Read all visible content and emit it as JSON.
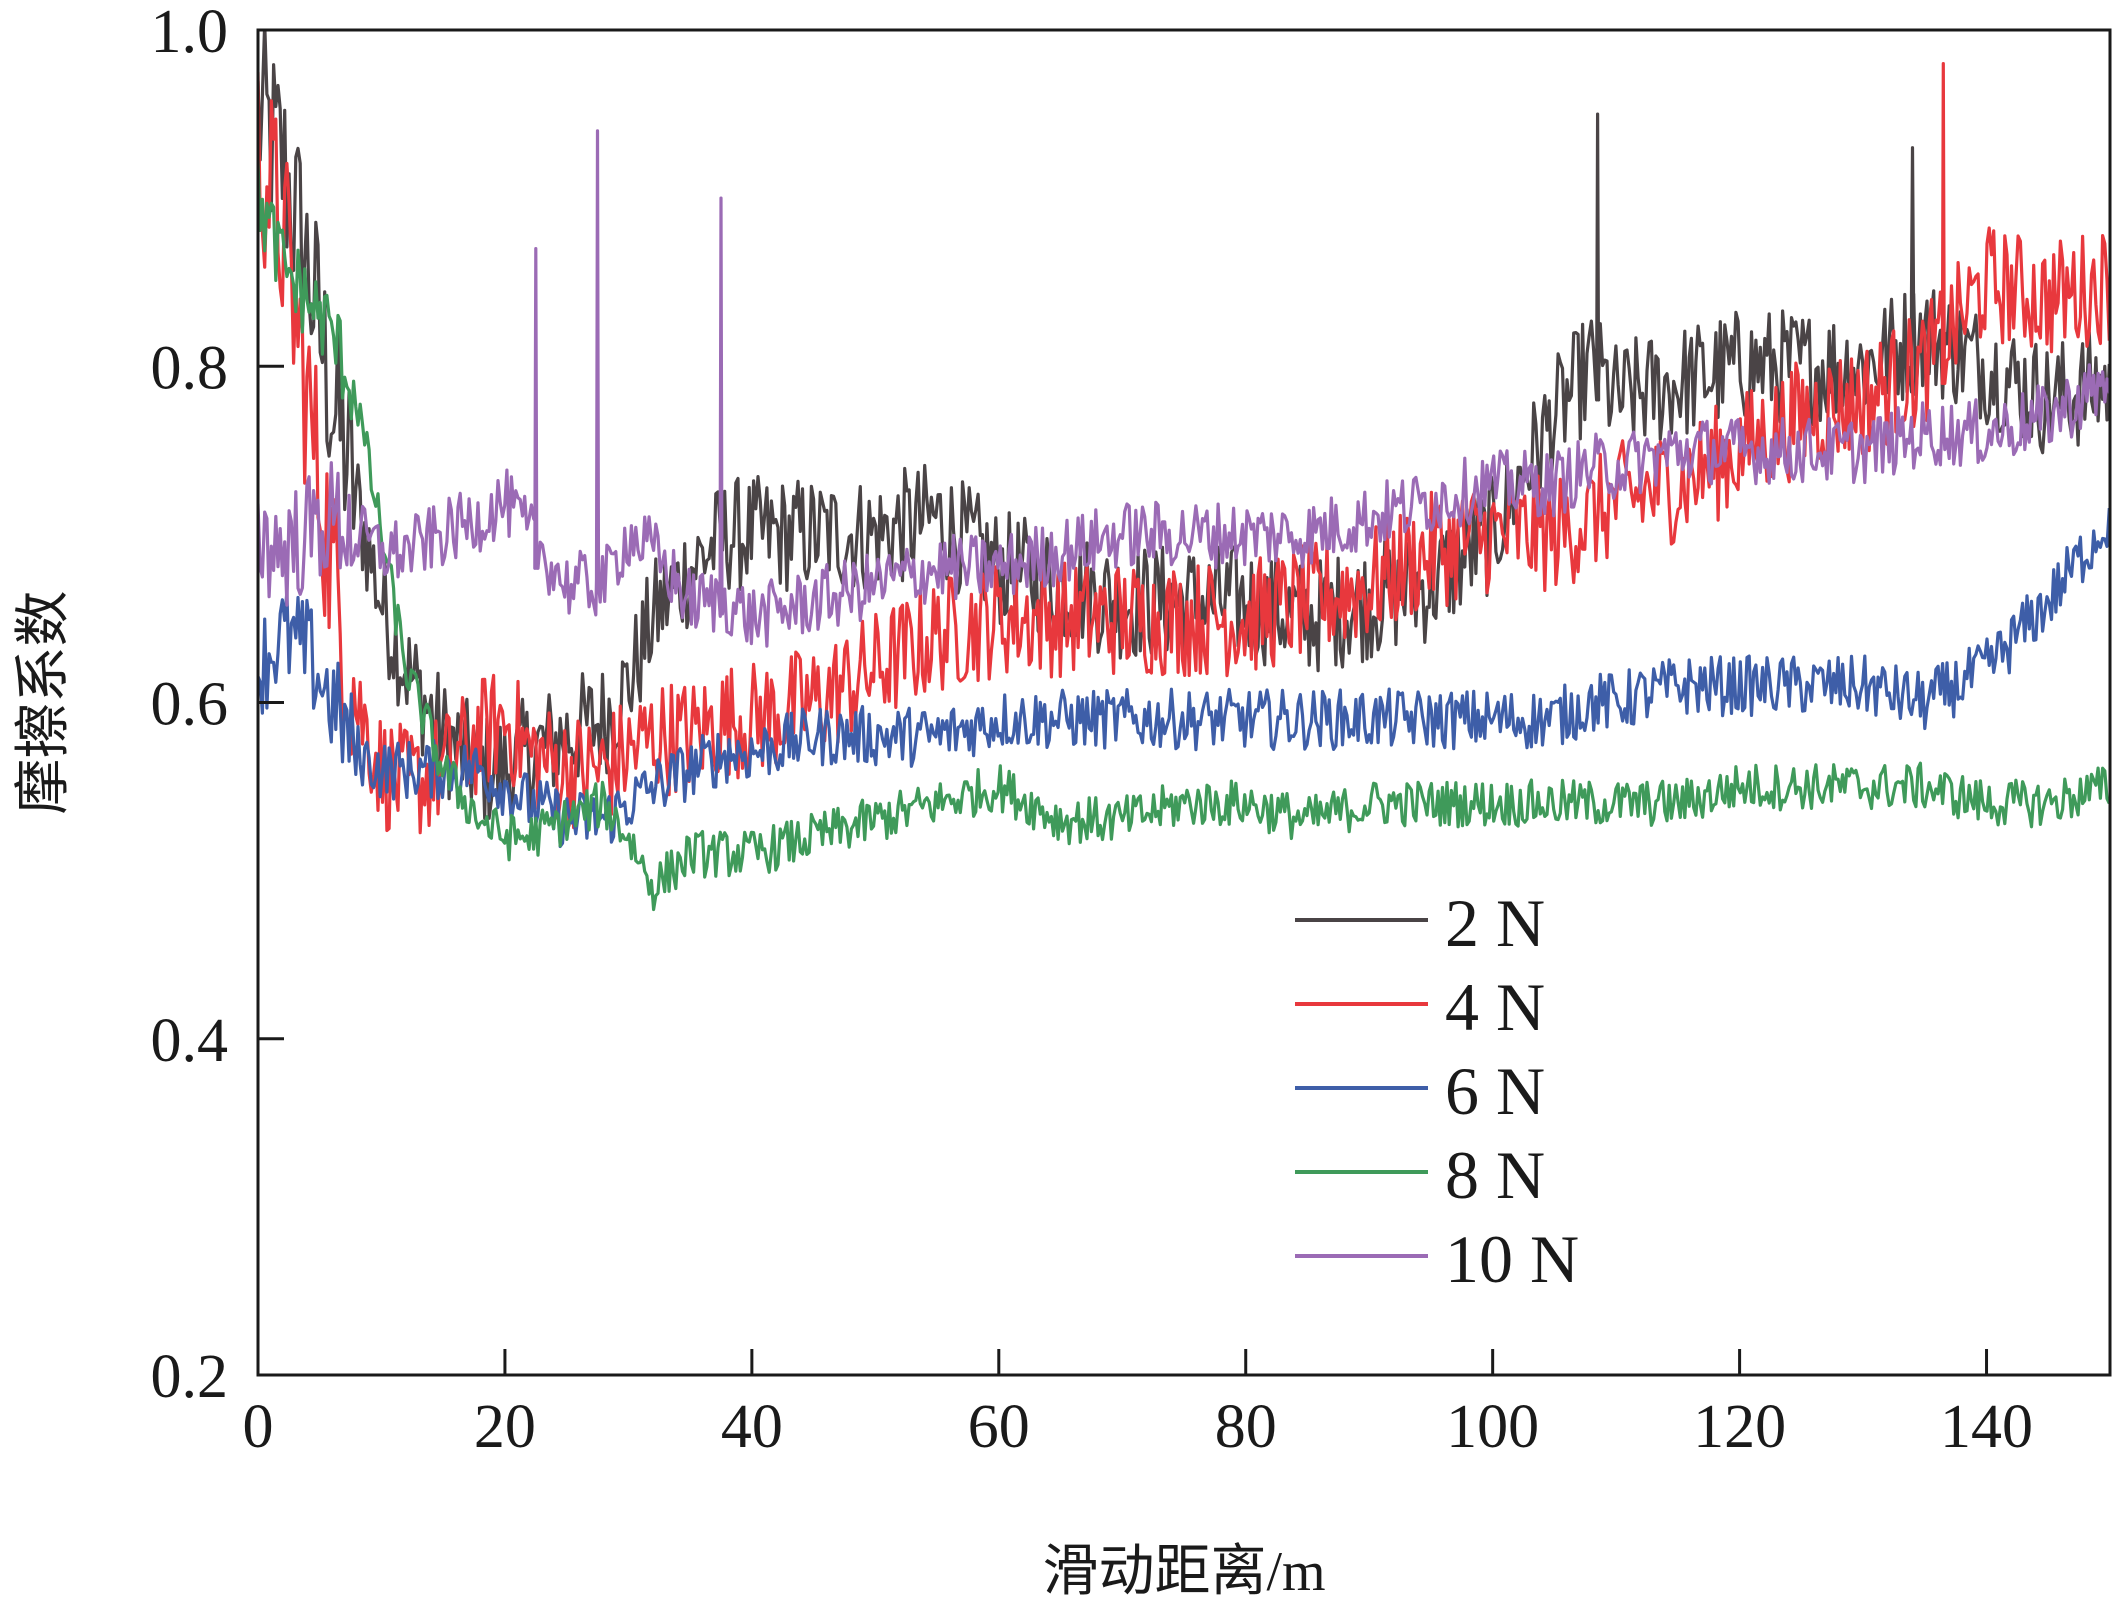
{
  "chart_data": {
    "type": "line",
    "title": "",
    "xlabel": "滑动距离/m",
    "ylabel": "摩擦系数",
    "xlim": [
      0,
      150
    ],
    "ylim": [
      0.2,
      1.0
    ],
    "x_ticks": [
      0,
      20,
      40,
      60,
      80,
      100,
      120,
      140
    ],
    "y_ticks": [
      0.2,
      0.4,
      0.6,
      0.8,
      1.0
    ],
    "x_tick_labels": [
      "0",
      "20",
      "40",
      "60",
      "80",
      "100",
      "120",
      "140"
    ],
    "y_tick_labels": [
      "0.2",
      "0.4",
      "0.6",
      "0.8",
      "1.0"
    ],
    "grid": false,
    "legend_position": "lower-right",
    "x": [
      0,
      2,
      4,
      6,
      8,
      10,
      12,
      15,
      18,
      20,
      22,
      25,
      28,
      30,
      32,
      35,
      38,
      40,
      45,
      50,
      55,
      60,
      65,
      70,
      75,
      80,
      85,
      90,
      95,
      100,
      102,
      105,
      108,
      110,
      115,
      120,
      125,
      130,
      135,
      140,
      145,
      150
    ],
    "series": [
      {
        "name": "2 N",
        "color": "#4a4446",
        "values": [
          0.95,
          0.92,
          0.86,
          0.78,
          0.72,
          0.66,
          0.62,
          0.58,
          0.56,
          0.56,
          0.57,
          0.58,
          0.59,
          0.61,
          0.65,
          0.68,
          0.7,
          0.7,
          0.7,
          0.7,
          0.71,
          0.68,
          0.67,
          0.66,
          0.66,
          0.66,
          0.65,
          0.66,
          0.67,
          0.7,
          0.73,
          0.77,
          0.8,
          0.78,
          0.79,
          0.8,
          0.8,
          0.8,
          0.82,
          0.8,
          0.78,
          0.79
        ]
      },
      {
        "name": "4 N",
        "color": "#e8383d",
        "values": [
          0.93,
          0.88,
          0.78,
          0.68,
          0.6,
          0.56,
          0.55,
          0.56,
          0.58,
          0.59,
          0.57,
          0.56,
          0.56,
          0.57,
          0.58,
          0.58,
          0.59,
          0.59,
          0.6,
          0.62,
          0.64,
          0.65,
          0.65,
          0.65,
          0.65,
          0.65,
          0.66,
          0.67,
          0.69,
          0.7,
          0.7,
          0.7,
          0.71,
          0.72,
          0.73,
          0.75,
          0.77,
          0.78,
          0.8,
          0.85,
          0.84,
          0.85
        ]
      },
      {
        "name": "6 N",
        "color": "#3e5ea8",
        "values": [
          0.62,
          0.64,
          0.63,
          0.6,
          0.57,
          0.56,
          0.56,
          0.56,
          0.56,
          0.55,
          0.54,
          0.53,
          0.53,
          0.54,
          0.55,
          0.56,
          0.57,
          0.57,
          0.58,
          0.58,
          0.58,
          0.59,
          0.59,
          0.59,
          0.59,
          0.59,
          0.59,
          0.59,
          0.59,
          0.59,
          0.59,
          0.59,
          0.6,
          0.6,
          0.61,
          0.61,
          0.61,
          0.61,
          0.6,
          0.62,
          0.66,
          0.71
        ]
      },
      {
        "name": "8 N",
        "color": "#3f9a5a",
        "values": [
          0.9,
          0.86,
          0.84,
          0.82,
          0.78,
          0.7,
          0.62,
          0.56,
          0.53,
          0.52,
          0.52,
          0.53,
          0.54,
          0.52,
          0.49,
          0.51,
          0.51,
          0.51,
          0.52,
          0.53,
          0.54,
          0.55,
          0.53,
          0.53,
          0.54,
          0.54,
          0.53,
          0.54,
          0.54,
          0.54,
          0.54,
          0.54,
          0.54,
          0.54,
          0.54,
          0.55,
          0.55,
          0.55,
          0.55,
          0.54,
          0.54,
          0.55
        ]
      },
      {
        "name": "10 N",
        "color": "#9b6bb5",
        "values": [
          0.7,
          0.69,
          0.7,
          0.71,
          0.7,
          0.69,
          0.69,
          0.7,
          0.71,
          0.72,
          0.7,
          0.67,
          0.67,
          0.7,
          0.69,
          0.66,
          0.66,
          0.65,
          0.66,
          0.67,
          0.68,
          0.68,
          0.69,
          0.7,
          0.7,
          0.7,
          0.7,
          0.71,
          0.72,
          0.73,
          0.73,
          0.73,
          0.74,
          0.74,
          0.75,
          0.75,
          0.75,
          0.75,
          0.76,
          0.76,
          0.77,
          0.79
        ]
      }
    ],
    "spikes": [
      {
        "series": "10 N",
        "x": 22.5,
        "y": 0.87
      },
      {
        "series": "10 N",
        "x": 27.5,
        "y": 0.94
      },
      {
        "series": "10 N",
        "x": 37.5,
        "y": 0.9
      },
      {
        "series": "2 N",
        "x": 108.5,
        "y": 0.95
      },
      {
        "series": "4 N",
        "x": 136.5,
        "y": 0.98
      },
      {
        "series": "2 N",
        "x": 134,
        "y": 0.93
      }
    ]
  }
}
